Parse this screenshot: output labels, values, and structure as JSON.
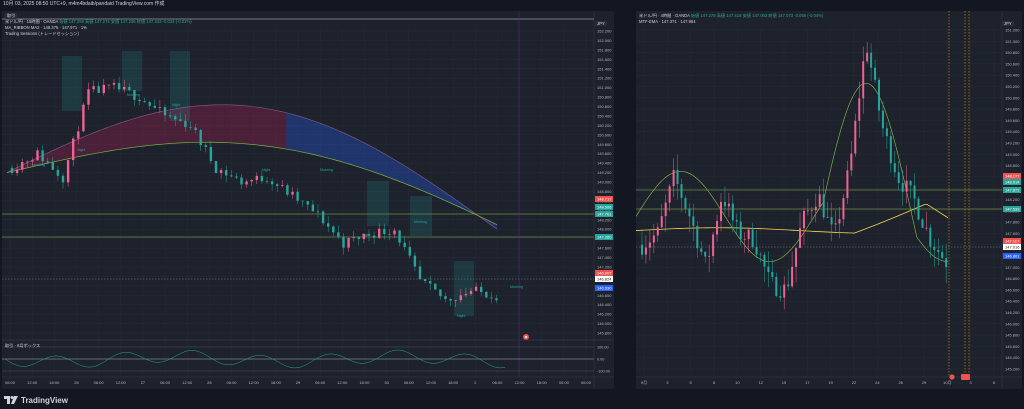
{
  "window_title": "10月 03, 2025 08:50 UTC+9, m4m4bdaib/pandaid TradingView.com 作成",
  "left": {
    "toggle_tag": "取引",
    "symbol_label": "米ドル/円 · 15時間 · OANDA",
    "ohlc": "始値 147.258 高値 147.274 安値 147.236 終値 147.243 -0.032 (-0.02%)",
    "indicator_1": "MA_RIBBON MA2 · 148.375 · 147.971 · 1%",
    "indicator_2": "Trading Sessions (トレードセッション)",
    "unit": "JPY",
    "price_ticks": [
      "152.200",
      "152.000",
      "151.800",
      "151.600",
      "151.400",
      "151.200",
      "151.000",
      "150.800",
      "150.600",
      "150.400",
      "150.200",
      "150.000",
      "149.800",
      "149.600",
      "149.400",
      "149.200",
      "149.000",
      "148.800",
      "148.600",
      "148.400",
      "148.200",
      "148.000",
      "147.800",
      "147.600",
      "147.400",
      "147.200",
      "147.000",
      "146.800",
      "146.600",
      "146.400",
      "146.200",
      "146.000",
      "145.800"
    ],
    "price_tags": [
      {
        "label": "148.717",
        "color": "#ef5350"
      },
      {
        "label": "148.506",
        "color": "#26a69a"
      },
      {
        "label": "147.761",
        "color": "#26a69a"
      },
      {
        "label": "147.260",
        "color": "#26a69a"
      },
      {
        "label": "146.907",
        "color": "#ef5350"
      },
      {
        "label": "146.824",
        "color": "#ffffff"
      },
      {
        "label": "146.530",
        "color": "#2962ff"
      }
    ],
    "time_ticks": [
      "06:00",
      "12:00",
      "18:00",
      "26",
      "06:00",
      "12:00",
      "27",
      "06:00",
      "12:00",
      "28",
      "06:00",
      "12:00",
      "18:00",
      "29",
      "06:00",
      "12:00",
      "18:00",
      "30",
      "06:00",
      "12:00",
      "18:00",
      "2",
      "06:00",
      "12:00",
      "18:00",
      "00:00",
      "06:00"
    ],
    "session_labels": [
      "Morning",
      "Night",
      "Morning",
      "Night",
      "Night",
      "Morning",
      "Night",
      "Morning",
      "Night",
      "Morning"
    ],
    "oscillator_label": "取引 · 6月ボックス",
    "osc_ticks": [
      "100.00",
      "0.00",
      "-100.00"
    ]
  },
  "right": {
    "symbol_label": "米ドル/円 · 4時間 · OANDA",
    "ohlc": "始値 147.278 高値 147.418 安値 147.003 終値 147.073 -0.065 (-0.04%)",
    "indicator_1": "MTF-EMA · 147.371 · 147.954",
    "unit": "JPY",
    "price_ticks": [
      "151.200",
      "151.000",
      "150.800",
      "150.600",
      "150.400",
      "150.200",
      "150.000",
      "149.800",
      "149.600",
      "149.400",
      "149.200",
      "149.000",
      "148.800",
      "148.600",
      "148.400",
      "148.200",
      "148.000",
      "147.800",
      "147.600",
      "147.400",
      "147.200",
      "147.000",
      "146.800",
      "146.600",
      "146.400",
      "146.200",
      "146.000",
      "145.800",
      "145.600",
      "145.400",
      "145.200"
    ],
    "price_tags": [
      {
        "label": "148.177",
        "color": "#ef5350"
      },
      {
        "label": "148.014",
        "color": "#26a69a"
      },
      {
        "label": "147.871",
        "color": "#26a69a"
      },
      {
        "label": "147.533",
        "color": "#26a69a"
      },
      {
        "label": "147.117",
        "color": "#ef5350"
      },
      {
        "label": "147.016",
        "color": "#ffffff"
      },
      {
        "label": "146.801",
        "color": "#2962ff"
      }
    ],
    "time_ticks": [
      "9月",
      "3",
      "5",
      "8",
      "10",
      "12",
      "15",
      "17",
      "19",
      "22",
      "24",
      "26",
      "29",
      "10月",
      "3",
      "6"
    ]
  },
  "brand": "TradingView",
  "colors": {
    "up": "#26a69a",
    "down": "#ef5350",
    "pink": "#f06292",
    "bg": "#1e222d",
    "page": "#131722",
    "grid": "#2a2e39",
    "ema": "#f5d74d",
    "ma": "#8bc34a"
  }
}
